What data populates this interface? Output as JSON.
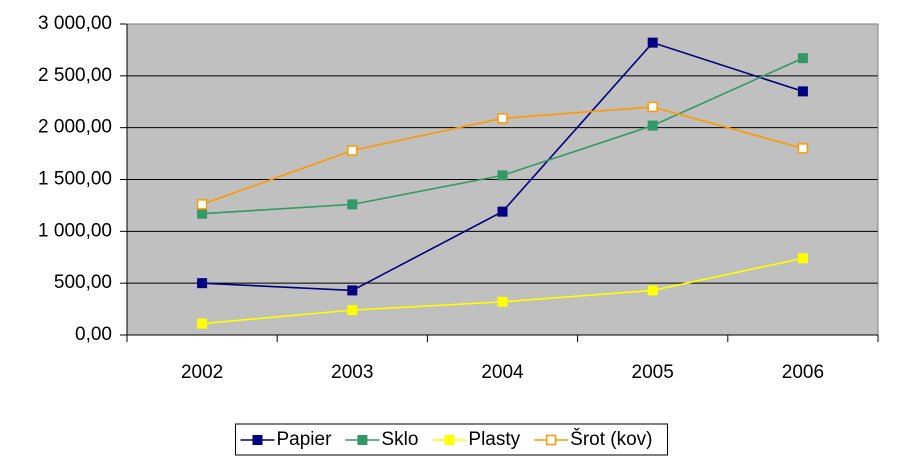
{
  "chart_data": {
    "type": "line",
    "categories": [
      "2002",
      "2003",
      "2004",
      "2005",
      "2006"
    ],
    "series": [
      {
        "name": "Papier",
        "color": "#000080",
        "marker": "filled",
        "values": [
          500,
          430,
          1190,
          2820,
          2350
        ]
      },
      {
        "name": "Sklo",
        "color": "#339966",
        "marker": "filled",
        "values": [
          1170,
          1260,
          1540,
          2020,
          2670
        ]
      },
      {
        "name": "Plasty",
        "color": "#ffff00",
        "marker": "filled",
        "values": [
          110,
          240,
          320,
          430,
          740
        ]
      },
      {
        "name": "Šrot (kov)",
        "color": "#ff9900",
        "marker": "open",
        "values": [
          1260,
          1780,
          2090,
          2200,
          1800
        ]
      }
    ],
    "ylim": [
      0,
      3000
    ],
    "yticks": [
      {
        "value": 0,
        "label": "0,00"
      },
      {
        "value": 500,
        "label": "500,00"
      },
      {
        "value": 1000,
        "label": "1 000,00"
      },
      {
        "value": 1500,
        "label": "1 500,00"
      },
      {
        "value": 2000,
        "label": "2 000,00"
      },
      {
        "value": 2500,
        "label": "2 500,00"
      },
      {
        "value": 3000,
        "label": "3 000,00"
      }
    ],
    "grid": true,
    "legend": "bottom",
    "plot_background": "#c0c0c0"
  }
}
